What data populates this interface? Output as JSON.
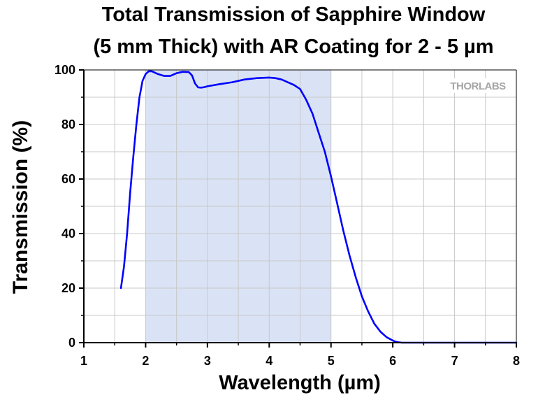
{
  "chart_data": {
    "type": "line",
    "title_line1": "Total Transmission of Sapphire Window",
    "title_line2": "(5 mm Thick) with AR Coating for 2 - 5 µm",
    "xlabel": "Wavelength (µm)",
    "ylabel": "Transmission (%)",
    "xlim": [
      1,
      8
    ],
    "ylim": [
      0,
      100
    ],
    "xticks": [
      "1",
      "2",
      "3",
      "4",
      "5",
      "6",
      "7",
      "8"
    ],
    "yticks": [
      "0",
      "20",
      "40",
      "60",
      "80",
      "100"
    ],
    "grid": true,
    "shaded_region": [
      2,
      5
    ],
    "shade_color": "#dae3f5",
    "line_color": "#0000ff",
    "logo_text": "THORLABS",
    "series": [
      {
        "x": [
          1.6,
          1.65,
          1.7,
          1.75,
          1.8,
          1.85,
          1.9,
          1.95,
          2.0,
          2.05,
          2.1,
          2.15,
          2.2,
          2.3,
          2.4,
          2.5,
          2.6,
          2.7,
          2.75,
          2.8,
          2.85,
          2.9,
          2.95,
          3.0,
          3.2,
          3.4,
          3.6,
          3.8,
          4.0,
          4.1,
          4.2,
          4.3,
          4.4,
          4.5,
          4.6,
          4.7,
          4.8,
          4.9,
          5.0,
          5.1,
          5.2,
          5.3,
          5.4,
          5.5,
          5.6,
          5.7,
          5.8,
          5.9,
          6.0,
          6.05,
          6.1,
          6.15,
          6.2,
          6.3,
          6.5,
          7.0,
          7.5,
          8.0
        ],
        "y": [
          20,
          28,
          40,
          55,
          68,
          80,
          90,
          96,
          98.5,
          99.5,
          99.5,
          99,
          98.5,
          97.8,
          97.8,
          98.8,
          99.3,
          99.2,
          98,
          95,
          93.6,
          93.5,
          93.7,
          94,
          94.8,
          95.5,
          96.5,
          97,
          97.2,
          97,
          96.5,
          95.5,
          94.5,
          93,
          89,
          84,
          77,
          70,
          61,
          51,
          41,
          32,
          24,
          17,
          11.5,
          7,
          4,
          2,
          0.8,
          0.3,
          0.1,
          0,
          0,
          0,
          0,
          0,
          0,
          0
        ]
      }
    ]
  }
}
